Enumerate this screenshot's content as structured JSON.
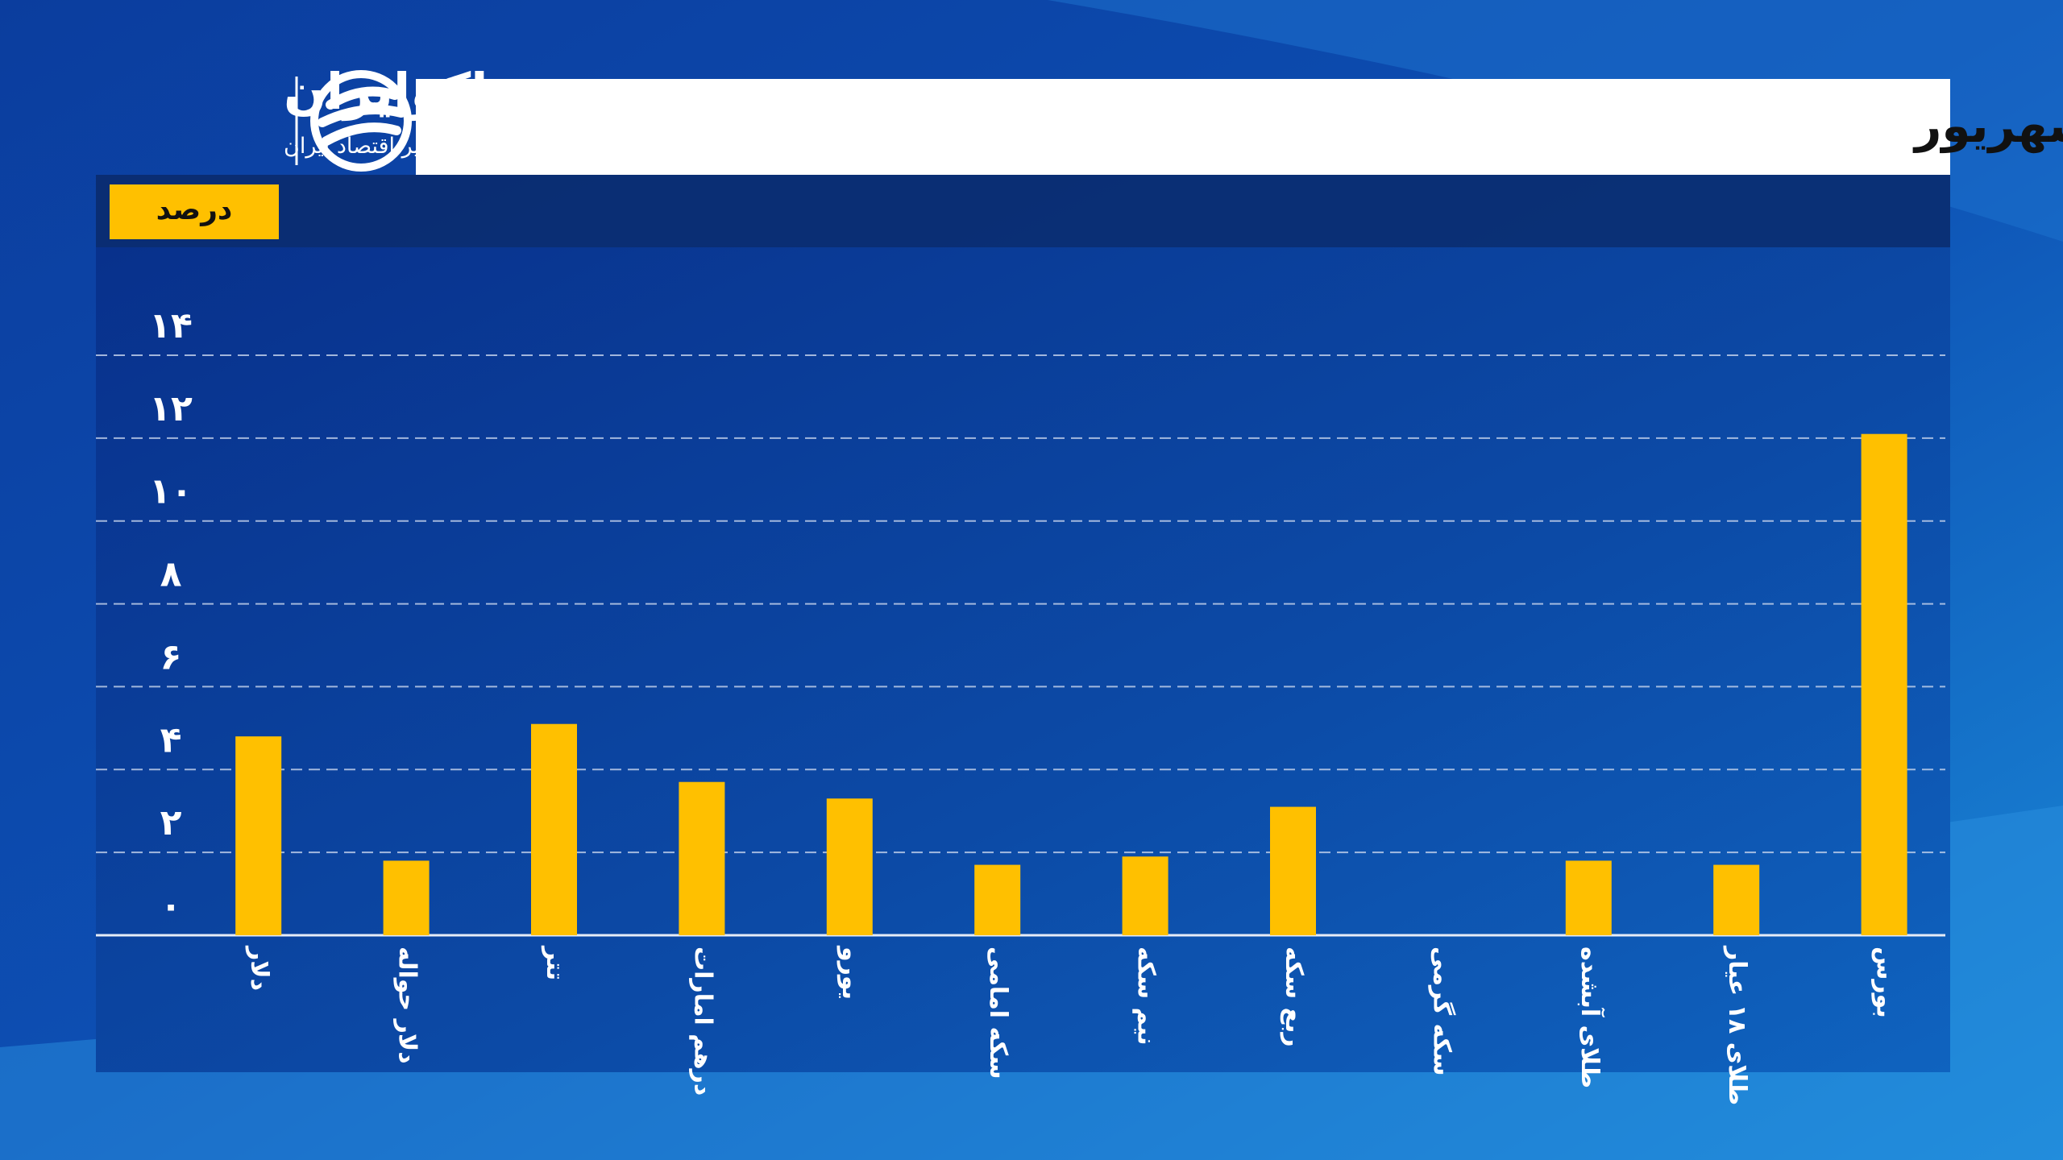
{
  "logo": {
    "name": "اکوایران",
    "tagline": "تصویر اقتصاد ایران"
  },
  "chart_data": {
    "type": "bar",
    "title": "بازدهی بازارها در هفته سوم شهریور",
    "ylabel": "درصد",
    "categories": [
      "دلار",
      "دلار حواله",
      "تتر",
      "درهم امارات",
      "یورو",
      "سکه امامی",
      "نیم سکه",
      "ربع سکه",
      "سکه گرمی",
      "طلای آبشده",
      "طلای ۱۸ عیار",
      "بورس"
    ],
    "values": [
      4.8,
      1.8,
      5.1,
      3.7,
      3.3,
      1.7,
      1.9,
      3.1,
      0,
      1.8,
      1.7,
      12.1
    ],
    "color": "#ffc000",
    "ylim": [
      0,
      14
    ],
    "yticks": [
      {
        "value": 0,
        "label": "۰"
      },
      {
        "value": 2,
        "label": "۲"
      },
      {
        "value": 4,
        "label": "۴"
      },
      {
        "value": 6,
        "label": "۶"
      },
      {
        "value": 8,
        "label": "۸"
      },
      {
        "value": 10,
        "label": "۱۰"
      },
      {
        "value": 12,
        "label": "۱۲"
      },
      {
        "value": 14,
        "label": "۱۴"
      }
    ],
    "grid": true
  }
}
